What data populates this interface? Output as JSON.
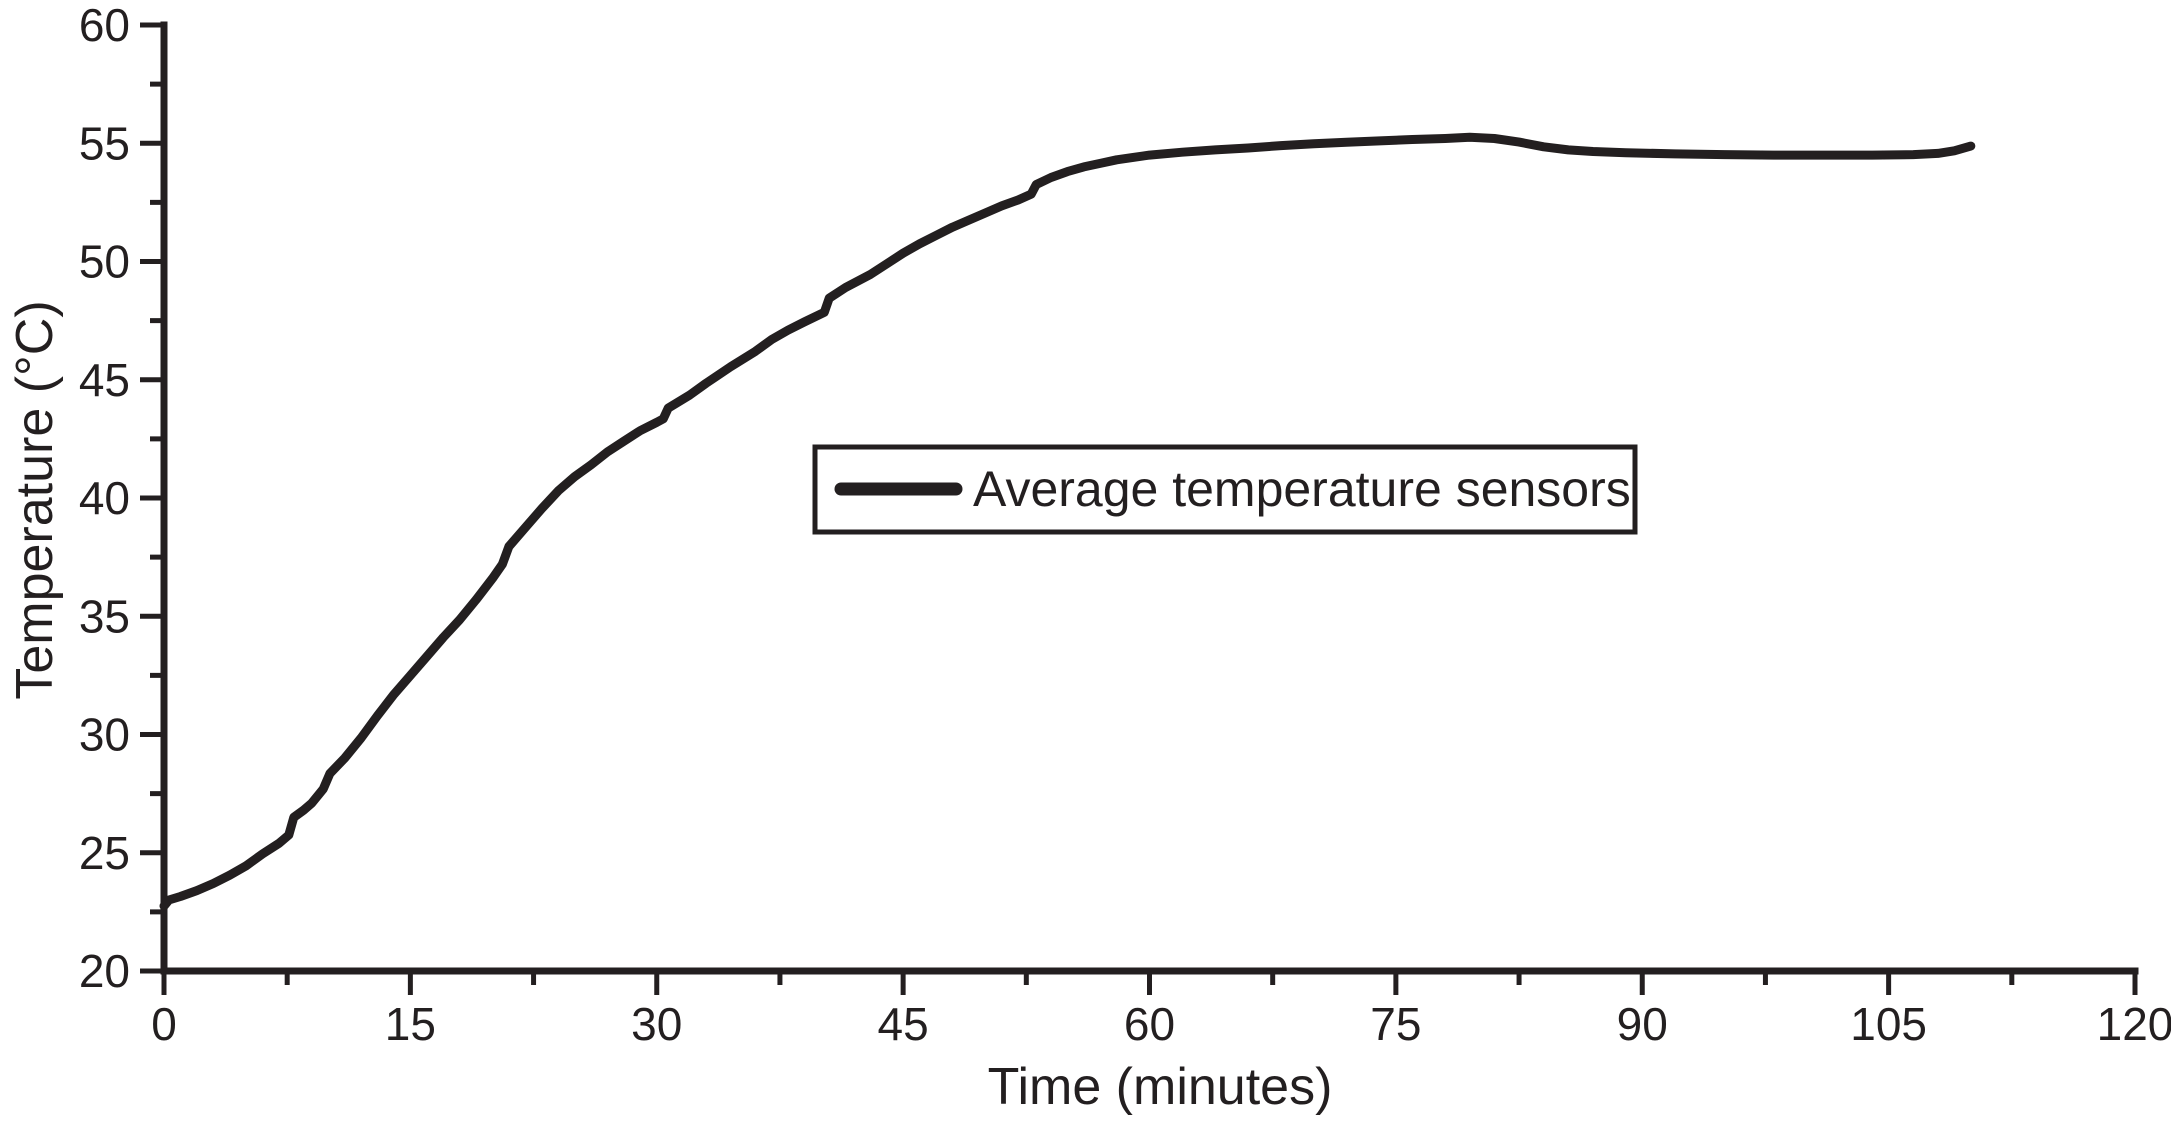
{
  "chart_data": {
    "type": "line",
    "title": "",
    "xlabel": "Time (minutes)",
    "ylabel": "Temperature (°C)",
    "xlim": [
      0,
      120
    ],
    "ylim": [
      20,
      60
    ],
    "x_major_ticks": [
      0,
      15,
      30,
      45,
      60,
      75,
      90,
      105,
      120
    ],
    "x_minor_step": 7.5,
    "y_major_ticks": [
      20,
      25,
      30,
      35,
      40,
      45,
      50,
      55,
      60
    ],
    "y_minor_step": 2.5,
    "grid": false,
    "background": "#ffffff",
    "line_color": "#231f20",
    "legend": {
      "position": "center",
      "entries": [
        {
          "label": "Average temperature sensors",
          "color": "#231f20"
        }
      ]
    },
    "series": [
      {
        "name": "Average temperature sensors",
        "points": [
          [
            0,
            22.75
          ],
          [
            0.3,
            23.0
          ],
          [
            1,
            23.15
          ],
          [
            2,
            23.4
          ],
          [
            3,
            23.7
          ],
          [
            4,
            24.05
          ],
          [
            5,
            24.45
          ],
          [
            6,
            24.95
          ],
          [
            7,
            25.4
          ],
          [
            7.6,
            25.75
          ],
          [
            7.9,
            26.5
          ],
          [
            8.5,
            26.8
          ],
          [
            9,
            27.1
          ],
          [
            9.7,
            27.7
          ],
          [
            10.1,
            28.35
          ],
          [
            11,
            29.0
          ],
          [
            12,
            29.85
          ],
          [
            13,
            30.8
          ],
          [
            14,
            31.7
          ],
          [
            15,
            32.5
          ],
          [
            16,
            33.3
          ],
          [
            17,
            34.1
          ],
          [
            18,
            34.85
          ],
          [
            19,
            35.7
          ],
          [
            20,
            36.6
          ],
          [
            20.6,
            37.2
          ],
          [
            21,
            37.95
          ],
          [
            22,
            38.75
          ],
          [
            23,
            39.55
          ],
          [
            24,
            40.3
          ],
          [
            25,
            40.9
          ],
          [
            26,
            41.4
          ],
          [
            27,
            41.95
          ],
          [
            28,
            42.4
          ],
          [
            29,
            42.85
          ],
          [
            30,
            43.2
          ],
          [
            30.4,
            43.35
          ],
          [
            30.7,
            43.8
          ],
          [
            32,
            44.35
          ],
          [
            33,
            44.85
          ],
          [
            34.5,
            45.55
          ],
          [
            36,
            46.2
          ],
          [
            37,
            46.7
          ],
          [
            38,
            47.1
          ],
          [
            39,
            47.45
          ],
          [
            40.2,
            47.85
          ],
          [
            40.5,
            48.45
          ],
          [
            41.5,
            48.9
          ],
          [
            43,
            49.45
          ],
          [
            44,
            49.9
          ],
          [
            45,
            50.35
          ],
          [
            46,
            50.75
          ],
          [
            47,
            51.1
          ],
          [
            48,
            51.45
          ],
          [
            49,
            51.75
          ],
          [
            50,
            52.05
          ],
          [
            51,
            52.35
          ],
          [
            52,
            52.6
          ],
          [
            52.8,
            52.85
          ],
          [
            53.1,
            53.25
          ],
          [
            54,
            53.55
          ],
          [
            55,
            53.8
          ],
          [
            56,
            54.0
          ],
          [
            57,
            54.15
          ],
          [
            58,
            54.3
          ],
          [
            59,
            54.4
          ],
          [
            60,
            54.5
          ],
          [
            62,
            54.62
          ],
          [
            64,
            54.72
          ],
          [
            66,
            54.8
          ],
          [
            68,
            54.9
          ],
          [
            70,
            54.98
          ],
          [
            72,
            55.04
          ],
          [
            74,
            55.1
          ],
          [
            76,
            55.16
          ],
          [
            78,
            55.2
          ],
          [
            79.5,
            55.25
          ],
          [
            81,
            55.2
          ],
          [
            82.5,
            55.05
          ],
          [
            84,
            54.85
          ],
          [
            85.5,
            54.72
          ],
          [
            87,
            54.65
          ],
          [
            89,
            54.6
          ],
          [
            92,
            54.55
          ],
          [
            95,
            54.52
          ],
          [
            98,
            54.5
          ],
          [
            101,
            54.5
          ],
          [
            104,
            54.5
          ],
          [
            106.5,
            54.52
          ],
          [
            108,
            54.57
          ],
          [
            109,
            54.68
          ],
          [
            110,
            54.88
          ]
        ]
      }
    ]
  }
}
